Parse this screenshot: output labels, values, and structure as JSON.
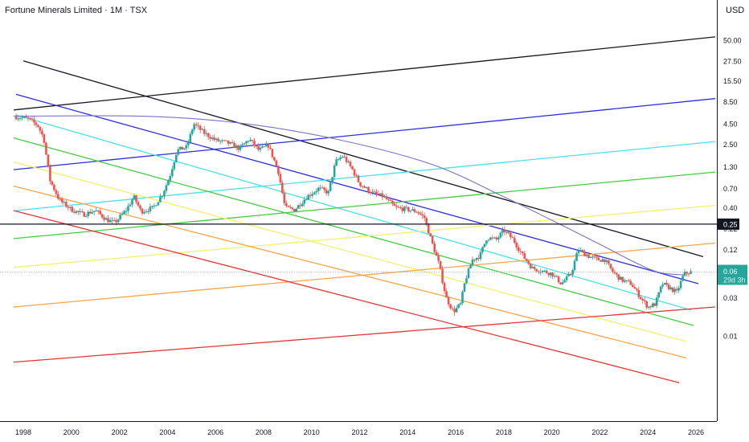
{
  "chart_data": {
    "type": "candlestick",
    "title": "Fortune Minerals Limited · 1M · TSX",
    "currency": "USD",
    "scale": "log",
    "grid": false,
    "x_ticks": [
      "1998",
      "2000",
      "2002",
      "2004",
      "2006",
      "2008",
      "2010",
      "2012",
      "2014",
      "2016",
      "2018",
      "2020",
      "2022",
      "2024",
      "2026"
    ],
    "y_ticks": [
      "50.00",
      "27.50",
      "15.50",
      "8.50",
      "4.50",
      "2.50",
      "1.30",
      "0.70",
      "0.40",
      "0.22",
      "0.12",
      "0.06",
      "0.03",
      "0.01"
    ],
    "highlight_level": {
      "label": "0.25",
      "value": 0.25,
      "color": "#131722"
    },
    "last_price": {
      "label": "0.06",
      "countdown": "29d 3h",
      "value": 0.063,
      "color": "#26a69a"
    },
    "candle_colors": {
      "up": "#26a69a",
      "down": "#ef5350"
    },
    "price_path": [
      [
        1997.7,
        5.5
      ],
      [
        1998.2,
        5.2
      ],
      [
        1998.6,
        4.3
      ],
      [
        1998.85,
        3.0
      ],
      [
        1999.1,
        0.9
      ],
      [
        1999.5,
        0.5
      ],
      [
        2000.0,
        0.38
      ],
      [
        2000.5,
        0.33
      ],
      [
        2001.0,
        0.37
      ],
      [
        2001.5,
        0.28
      ],
      [
        2001.8,
        0.26
      ],
      [
        2002.3,
        0.38
      ],
      [
        2002.6,
        0.55
      ],
      [
        2002.9,
        0.36
      ],
      [
        2003.4,
        0.4
      ],
      [
        2003.8,
        0.6
      ],
      [
        2004.1,
        1.0
      ],
      [
        2004.4,
        2.1
      ],
      [
        2004.8,
        2.3
      ],
      [
        2005.1,
        4.5
      ],
      [
        2005.5,
        3.5
      ],
      [
        2006.0,
        2.8
      ],
      [
        2006.5,
        2.6
      ],
      [
        2007.0,
        2.2
      ],
      [
        2007.4,
        2.9
      ],
      [
        2007.8,
        2.1
      ],
      [
        2008.2,
        2.4
      ],
      [
        2008.6,
        1.2
      ],
      [
        2008.9,
        0.4
      ],
      [
        2009.3,
        0.38
      ],
      [
        2009.8,
        0.55
      ],
      [
        2010.3,
        0.7
      ],
      [
        2010.7,
        0.62
      ],
      [
        2011.0,
        1.5
      ],
      [
        2011.3,
        1.8
      ],
      [
        2011.7,
        1.2
      ],
      [
        2012.0,
        0.8
      ],
      [
        2012.5,
        0.62
      ],
      [
        2013.0,
        0.55
      ],
      [
        2013.5,
        0.4
      ],
      [
        2014.0,
        0.38
      ],
      [
        2014.4,
        0.36
      ],
      [
        2014.7,
        0.3
      ],
      [
        2015.0,
        0.15
      ],
      [
        2015.3,
        0.08
      ],
      [
        2015.6,
        0.03
      ],
      [
        2015.9,
        0.02
      ],
      [
        2016.2,
        0.025
      ],
      [
        2016.4,
        0.05
      ],
      [
        2016.7,
        0.09
      ],
      [
        2017.0,
        0.1
      ],
      [
        2017.3,
        0.17
      ],
      [
        2017.7,
        0.16
      ],
      [
        2018.0,
        0.21
      ],
      [
        2018.4,
        0.16
      ],
      [
        2018.8,
        0.1
      ],
      [
        2019.2,
        0.07
      ],
      [
        2019.6,
        0.065
      ],
      [
        2020.0,
        0.06
      ],
      [
        2020.4,
        0.045
      ],
      [
        2020.8,
        0.06
      ],
      [
        2021.1,
        0.12
      ],
      [
        2021.5,
        0.1
      ],
      [
        2021.9,
        0.09
      ],
      [
        2022.2,
        0.09
      ],
      [
        2022.5,
        0.065
      ],
      [
        2022.9,
        0.05
      ],
      [
        2023.3,
        0.045
      ],
      [
        2023.7,
        0.03
      ],
      [
        2024.0,
        0.023
      ],
      [
        2024.3,
        0.025
      ],
      [
        2024.6,
        0.045
      ],
      [
        2024.9,
        0.04
      ],
      [
        2025.2,
        0.035
      ],
      [
        2025.5,
        0.06
      ],
      [
        2025.8,
        0.063
      ]
    ],
    "trendlines": [
      {
        "color": "#131722",
        "p1": [
          1998.0,
          27.5
        ],
        "p2": [
          2026.3,
          0.098
        ]
      },
      {
        "color": "#131722",
        "p1": [
          1997.6,
          6.7
        ],
        "p2": [
          2026.8,
          55.0
        ]
      },
      {
        "color": "#2b2ddb",
        "p1": [
          1997.7,
          10.5
        ],
        "p2": [
          2026.1,
          0.045
        ]
      },
      {
        "color": "#2b2ddb",
        "p1": [
          1997.6,
          1.2
        ],
        "p2": [
          2026.8,
          9.3
        ]
      },
      {
        "color": "#48e0ec",
        "p1": [
          1997.7,
          5.8
        ],
        "p2": [
          2025.8,
          0.021
        ]
      },
      {
        "color": "#48e0ec",
        "p1": [
          1997.7,
          0.37
        ],
        "p2": [
          2026.8,
          2.7
        ]
      },
      {
        "color": "#43cc43",
        "p1": [
          1997.6,
          3.0
        ],
        "p2": [
          2025.9,
          0.0135
        ]
      },
      {
        "color": "#43cc43",
        "p1": [
          1997.6,
          0.165
        ],
        "p2": [
          2026.8,
          1.12
        ]
      },
      {
        "color": "#f3f06e",
        "p1": [
          1997.6,
          1.5
        ],
        "p2": [
          2025.6,
          0.0085
        ]
      },
      {
        "color": "#f3f06e",
        "p1": [
          1997.6,
          0.072
        ],
        "p2": [
          2026.8,
          0.43
        ]
      },
      {
        "color": "#f5a447",
        "p1": [
          1997.6,
          0.75
        ],
        "p2": [
          2025.6,
          0.0053
        ]
      },
      {
        "color": "#f5a447",
        "p1": [
          1997.6,
          0.023
        ],
        "p2": [
          2026.8,
          0.145
        ]
      },
      {
        "color": "#e53535",
        "p1": [
          1997.6,
          0.37
        ],
        "p2": [
          2025.3,
          0.0026
        ]
      },
      {
        "color": "#e53535",
        "p1": [
          1997.6,
          0.0047
        ],
        "p2": [
          2026.8,
          0.023
        ]
      }
    ],
    "arc": {
      "color": "#7e6fc9",
      "points": [
        [
          1997.6,
          5.6
        ],
        [
          2003.0,
          5.6
        ],
        [
          2007.0,
          4.6
        ],
        [
          2011.0,
          2.9
        ],
        [
          2015.0,
          1.4
        ],
        [
          2018.0,
          0.55
        ],
        [
          2020.0,
          0.28
        ],
        [
          2022.0,
          0.14
        ],
        [
          2023.5,
          0.082
        ],
        [
          2024.5,
          0.062
        ],
        [
          2025.5,
          0.058
        ]
      ]
    }
  }
}
